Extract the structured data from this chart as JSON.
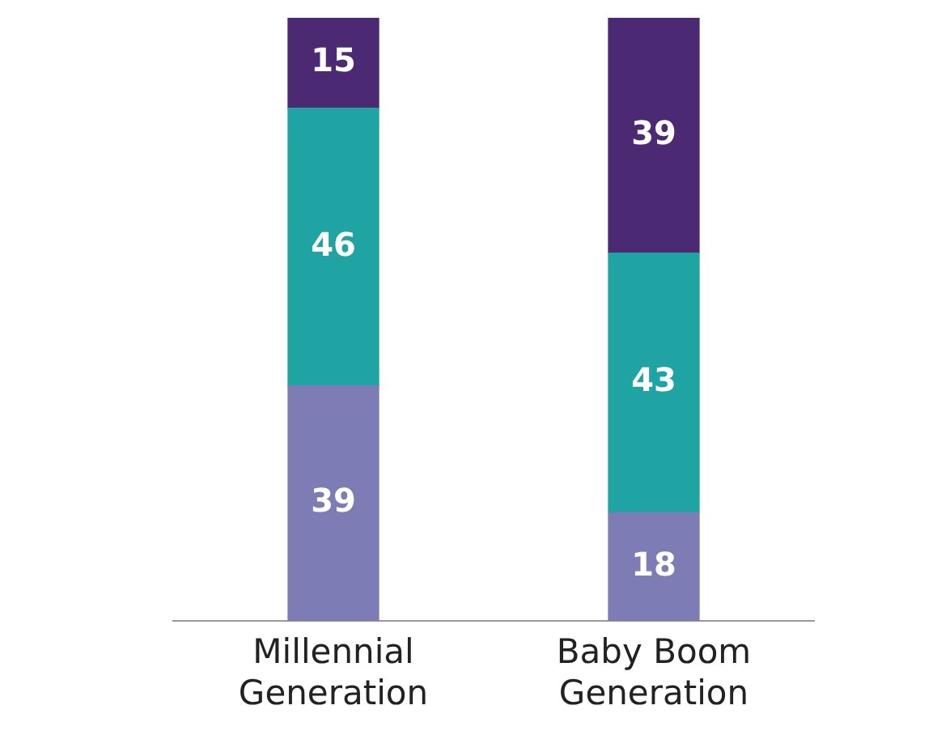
{
  "chart_data": {
    "type": "bar",
    "stacked": true,
    "categories": [
      "Millennial Generation",
      "Baby Boom Generation"
    ],
    "series": [
      {
        "color": "#7d7cb4",
        "values": [
          39,
          18
        ]
      },
      {
        "color": "#1fa3a3",
        "values": [
          46,
          43
        ]
      },
      {
        "color": "#4b2a73",
        "values": [
          15,
          39
        ]
      }
    ],
    "data_labels": true,
    "grid": false,
    "legend": false
  }
}
